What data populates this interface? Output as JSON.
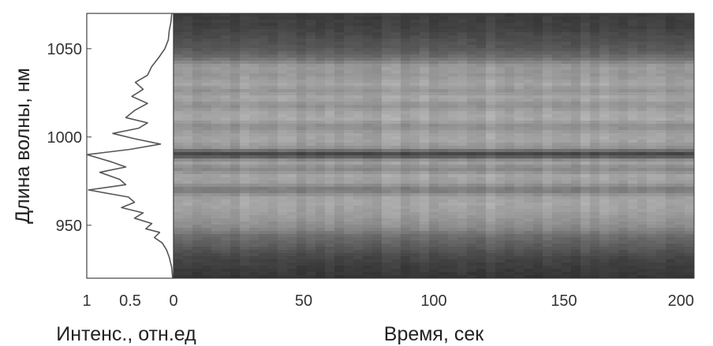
{
  "chart_data": [
    {
      "type": "line",
      "orientation": "vertical-profile",
      "xlabel": "Интенс., отн.ед",
      "ylabel": "Длина волны, нм",
      "xlim": [
        1,
        0
      ],
      "ylim": [
        920,
        1070
      ],
      "x_ticks": [
        "1",
        "0.5",
        "0"
      ],
      "y_ticks": [
        "950",
        "1000",
        "1050"
      ],
      "line_color": "#555555",
      "series": [
        {
          "points": [
            [
              920,
              0.01
            ],
            [
              926,
              0.02
            ],
            [
              932,
              0.05
            ],
            [
              936,
              0.08
            ],
            [
              940,
              0.13
            ],
            [
              943,
              0.22
            ],
            [
              946,
              0.16
            ],
            [
              948,
              0.32
            ],
            [
              951,
              0.25
            ],
            [
              954,
              0.45
            ],
            [
              957,
              0.35
            ],
            [
              960,
              0.6
            ],
            [
              963,
              0.45
            ],
            [
              966,
              0.52
            ],
            [
              970,
              0.98
            ],
            [
              973,
              0.55
            ],
            [
              976,
              0.62
            ],
            [
              980,
              0.85
            ],
            [
              983,
              0.55
            ],
            [
              986,
              0.72
            ],
            [
              990,
              1.0
            ],
            [
              993,
              0.5
            ],
            [
              996,
              0.15
            ],
            [
              999,
              0.45
            ],
            [
              1002,
              0.7
            ],
            [
              1005,
              0.4
            ],
            [
              1008,
              0.3
            ],
            [
              1011,
              0.55
            ],
            [
              1015,
              0.45
            ],
            [
              1019,
              0.3
            ],
            [
              1023,
              0.48
            ],
            [
              1027,
              0.35
            ],
            [
              1031,
              0.44
            ],
            [
              1035,
              0.3
            ],
            [
              1040,
              0.25
            ],
            [
              1045,
              0.17
            ],
            [
              1050,
              0.1
            ],
            [
              1055,
              0.06
            ],
            [
              1060,
              0.05
            ],
            [
              1065,
              0.03
            ],
            [
              1070,
              0.02
            ]
          ]
        }
      ],
      "grid": false
    },
    {
      "type": "heatmap",
      "xlabel": "Время, сек",
      "ylabel": "",
      "xlim": [
        0,
        200
      ],
      "ylim": [
        920,
        1070
      ],
      "x_ticks": [
        "0",
        "50",
        "100",
        "150",
        "200"
      ],
      "colormap": "gray",
      "value_range": [
        0,
        1
      ],
      "row_wavelengths": [
        920,
        926,
        932,
        938,
        944,
        948,
        952,
        957,
        962,
        966,
        970,
        974,
        978,
        982,
        986,
        990,
        994,
        998,
        1002,
        1006,
        1010,
        1014,
        1018,
        1022,
        1026,
        1030,
        1035,
        1040,
        1045,
        1050,
        1056,
        1062,
        1070
      ],
      "row_intensity": [
        0.08,
        0.12,
        0.18,
        0.3,
        0.4,
        0.55,
        0.62,
        0.68,
        0.72,
        0.7,
        0.45,
        0.68,
        0.72,
        0.55,
        0.72,
        0.12,
        0.62,
        0.72,
        0.7,
        0.58,
        0.74,
        0.72,
        0.6,
        0.74,
        0.62,
        0.72,
        0.64,
        0.66,
        0.4,
        0.28,
        0.22,
        0.15,
        0.12
      ],
      "time_variation": "slight vertical streaks along time axis",
      "grid": false
    }
  ]
}
